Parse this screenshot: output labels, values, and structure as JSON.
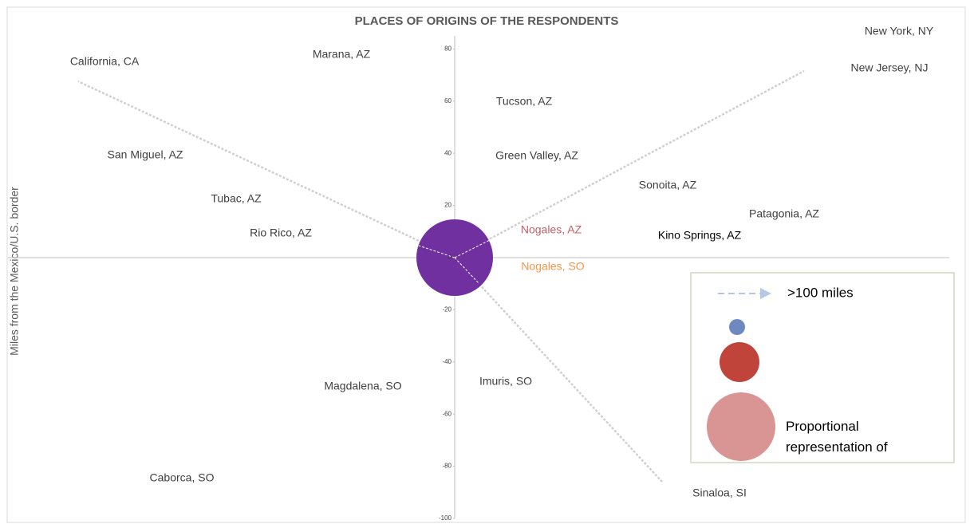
{
  "chart_data": {
    "type": "bubble",
    "title": "PLACES OF ORIGINS OF THE RESPONDENTS",
    "ylabel": "Miles from the Mexico/U.S. border",
    "ylim": [
      -100,
      95
    ],
    "yticks": [
      80,
      60,
      40,
      20,
      0,
      -20,
      -40,
      -60,
      -80,
      -100
    ],
    "series": [
      {
        "color": "#7030a0",
        "x": [
          0
        ],
        "values": [
          0
        ]
      }
    ],
    "annotations": [
      "New York, NY",
      "California, CA",
      "Marana, AZ",
      "New Jersey, NJ",
      "Tucson,  AZ",
      "San Miguel, AZ",
      "Green Valley, AZ",
      "Sonoita, AZ",
      "Tubac, AZ",
      "Patagonia, AZ",
      "Nogales, AZ",
      "Rio Rico, AZ",
      "Kino Springs, AZ",
      "Nogales, SO",
      "Imuris, SO",
      "Magdalena, SO",
      "Caborca, SO",
      "Sinaloa, SI"
    ],
    "annotation_colors": [
      "#404040",
      "#404040",
      "#404040",
      "#404040",
      "#404040",
      "#404040",
      "#404040",
      "#404040",
      "#404040",
      "#404040",
      "#c0606a",
      "#404040",
      "#000000",
      "#f79646",
      "#404040",
      "#404040",
      "#404040",
      "#404040"
    ],
    "legend_labels": [
      ">100 miles",
      "Proportional representation of"
    ]
  }
}
